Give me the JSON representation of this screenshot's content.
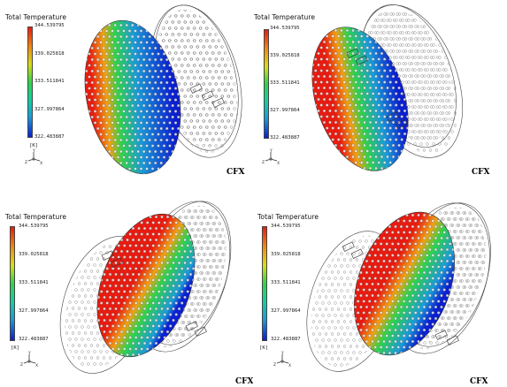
{
  "colors": {
    "hot": "#e81b10",
    "warm": "#f0a012",
    "mid": "#2fd34a",
    "cool": "#1a9ad8",
    "cold": "#0b1fd0",
    "outline": "#444444"
  },
  "legend": {
    "title": "Total Temperature",
    "ticks": [
      "344.539795",
      "339.025818",
      "333.511841",
      "327.997864",
      "322.483887"
    ],
    "unit": "[K]"
  },
  "brand": "CFX",
  "axis_labels": {
    "y": "Y",
    "z": "Z",
    "x": "X"
  },
  "panels": [
    {
      "id": "top-left"
    },
    {
      "id": "top-right"
    },
    {
      "id": "bottom-left"
    },
    {
      "id": "bottom-right"
    }
  ]
}
